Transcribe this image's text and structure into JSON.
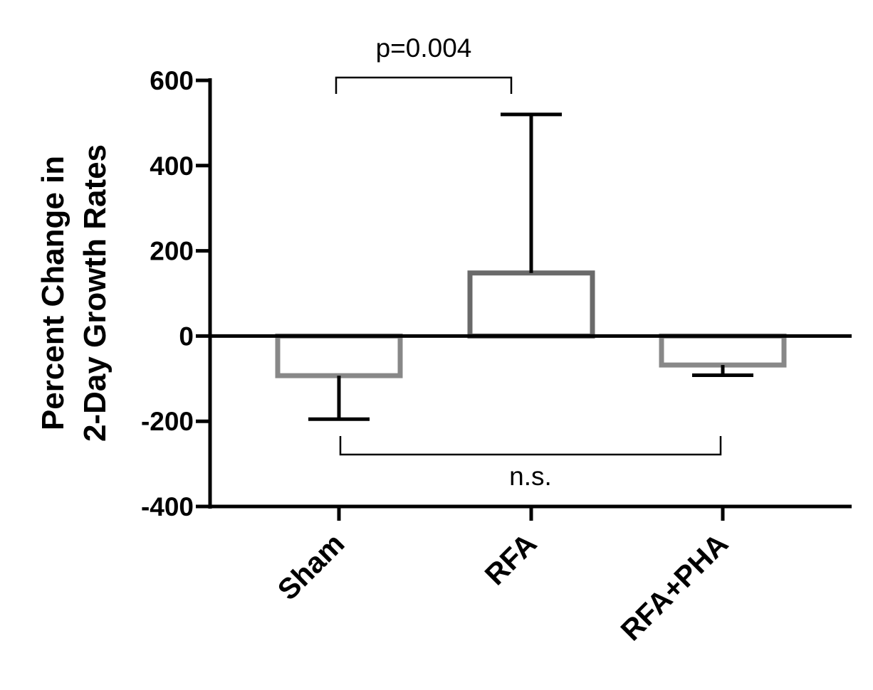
{
  "chart_data": {
    "type": "bar",
    "title": "",
    "ylabel": [
      "Percent Change in",
      "2-Day Growth Rates"
    ],
    "xlabel": "",
    "categories": [
      "Sham",
      "RFA",
      "RFA+PHA"
    ],
    "values": [
      -93,
      148,
      -68
    ],
    "error_bars": [
      -195,
      520,
      -92
    ],
    "bar_colors": [
      "#888888",
      "#6a6a6a",
      "#888888"
    ],
    "ylim": [
      -400,
      600
    ],
    "yticks": [
      -400,
      -200,
      0,
      200,
      400,
      600
    ],
    "ytick_labels": [
      "-400",
      "-200",
      "0",
      "200",
      "400",
      "600"
    ],
    "grid": false,
    "annotations": [
      {
        "label": "p=0.004",
        "from": "Sham",
        "to": "RFA",
        "position": "above"
      },
      {
        "label": "n.s.",
        "from": "Sham",
        "to": "RFA+PHA",
        "position": "below"
      }
    ]
  }
}
